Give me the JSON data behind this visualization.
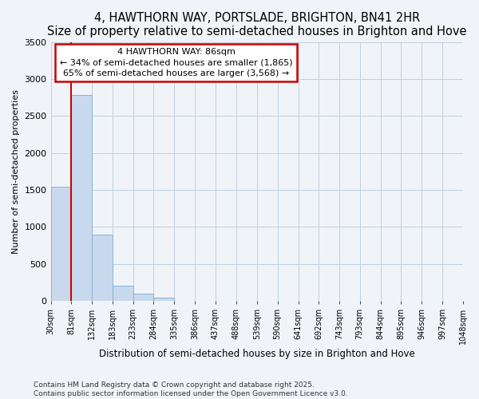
{
  "title": "4, HAWTHORN WAY, PORTSLADE, BRIGHTON, BN41 2HR",
  "subtitle": "Size of property relative to semi-detached houses in Brighton and Hove",
  "xlabel": "Distribution of semi-detached houses by size in Brighton and Hove",
  "ylabel": "Number of semi-detached properties",
  "bar_color": "#c9d9ed",
  "bar_edge_color": "#7aadd4",
  "property_line_x": 81,
  "property_line_color": "#cc0000",
  "bin_edges": [
    30,
    81,
    132,
    183,
    233,
    284,
    335,
    386,
    437,
    488,
    539,
    590,
    641,
    692,
    743,
    793,
    844,
    895,
    946,
    997,
    1048
  ],
  "bar_heights": [
    1540,
    2780,
    900,
    205,
    100,
    50,
    3,
    0,
    0,
    0,
    0,
    0,
    0,
    0,
    0,
    0,
    0,
    0,
    0,
    0
  ],
  "annotation_title": "4 HAWTHORN WAY: 86sqm",
  "annotation_line1": "← 34% of semi-detached houses are smaller (1,865)",
  "annotation_line2": "65% of semi-detached houses are larger (3,568) →",
  "annotation_box_color": "#cc0000",
  "ylim": [
    0,
    3500
  ],
  "yticks": [
    0,
    500,
    1000,
    1500,
    2000,
    2500,
    3000,
    3500
  ],
  "footnote1": "Contains HM Land Registry data © Crown copyright and database right 2025.",
  "footnote2": "Contains public sector information licensed under the Open Government Licence v3.0.",
  "tick_labels": [
    "30sqm",
    "81sqm",
    "132sqm",
    "183sqm",
    "233sqm",
    "284sqm",
    "335sqm",
    "386sqm",
    "437sqm",
    "488sqm",
    "539sqm",
    "590sqm",
    "641sqm",
    "692sqm",
    "743sqm",
    "793sqm",
    "844sqm",
    "895sqm",
    "946sqm",
    "997sqm",
    "1048sqm"
  ],
  "bg_color": "#f0f4f8",
  "title_fontsize": 10.5,
  "subtitle_fontsize": 9,
  "xlabel_fontsize": 8.5,
  "ylabel_fontsize": 8,
  "tick_fontsize": 7,
  "ytick_fontsize": 8,
  "annot_fontsize": 8,
  "footnote_fontsize": 6.5
}
